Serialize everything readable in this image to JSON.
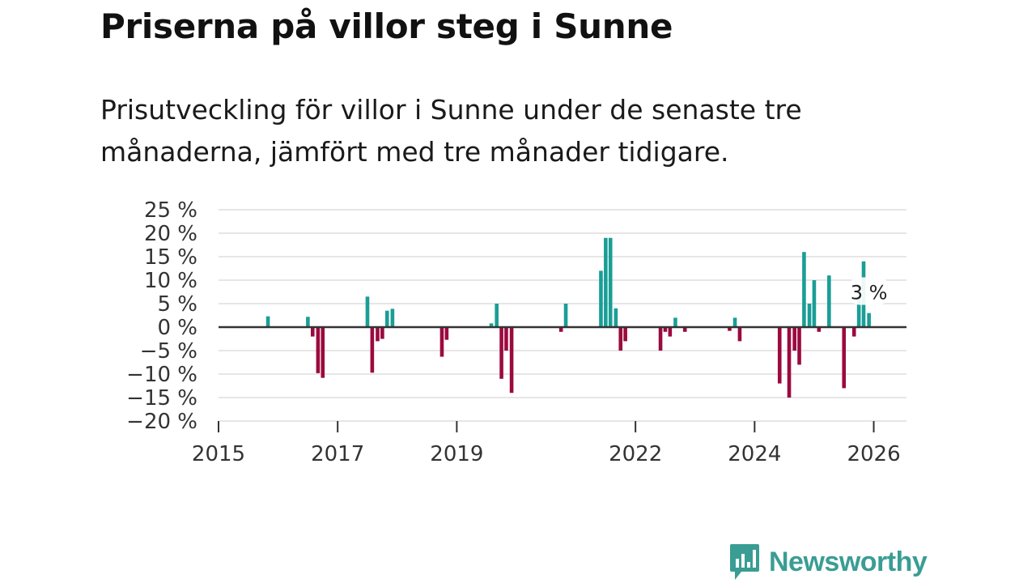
{
  "title": "Priserna på villor steg i Sunne",
  "subtitle": "Prisutveckling för villor i Sunne under de senaste tre månaderna, jämfört med tre månader tidigare.",
  "colors": {
    "positive": "#1a9e96",
    "negative": "#9b0a3e",
    "grid": "#dddddd",
    "zero": "#333333"
  },
  "logo": {
    "name": "Newsworthy",
    "icon": "bar-chart-speech-bubble-icon"
  },
  "chart_data": {
    "type": "bar",
    "title": "Priserna på villor steg i Sunne",
    "xlabel": "",
    "ylabel": "",
    "xlim": [
      2015.0,
      2026.55
    ],
    "ylim": [
      -20,
      25
    ],
    "y_ticks": [
      25,
      20,
      15,
      10,
      5,
      0,
      -5,
      -10,
      -15,
      -20
    ],
    "y_tick_labels": [
      "25 %",
      "20 %",
      "15 %",
      "10 %",
      "5 %",
      "0 %",
      "−5 %",
      "−10 %",
      "−15 %",
      "−20 %"
    ],
    "x_ticks": [
      2015,
      2017,
      2019,
      2022,
      2024,
      2026
    ],
    "x_tick_labels": [
      "2015",
      "2017",
      "2019",
      "2022",
      "2024",
      "2026"
    ],
    "annotation": {
      "x": 2025.92,
      "value": 3,
      "label": "3 %"
    },
    "points": [
      {
        "x": 2015.83,
        "v": 2.3
      },
      {
        "x": 2016.5,
        "v": 2.2
      },
      {
        "x": 2016.58,
        "v": -2.0
      },
      {
        "x": 2016.67,
        "v": -9.8
      },
      {
        "x": 2016.75,
        "v": -10.8
      },
      {
        "x": 2017.5,
        "v": 6.5
      },
      {
        "x": 2017.58,
        "v": -9.7
      },
      {
        "x": 2017.67,
        "v": -3.0
      },
      {
        "x": 2017.75,
        "v": -2.5
      },
      {
        "x": 2017.83,
        "v": 3.5
      },
      {
        "x": 2017.92,
        "v": 3.9
      },
      {
        "x": 2018.75,
        "v": -6.3
      },
      {
        "x": 2018.83,
        "v": -2.7
      },
      {
        "x": 2019.58,
        "v": 0.8
      },
      {
        "x": 2019.67,
        "v": 5.0
      },
      {
        "x": 2019.75,
        "v": -11.0
      },
      {
        "x": 2019.83,
        "v": -5.0
      },
      {
        "x": 2019.92,
        "v": -14.0
      },
      {
        "x": 2020.75,
        "v": -1.0
      },
      {
        "x": 2020.83,
        "v": 5.0
      },
      {
        "x": 2021.42,
        "v": 12.0
      },
      {
        "x": 2021.5,
        "v": 19.0
      },
      {
        "x": 2021.58,
        "v": 19.0
      },
      {
        "x": 2021.67,
        "v": 4.0
      },
      {
        "x": 2021.75,
        "v": -5.0
      },
      {
        "x": 2021.83,
        "v": -3.0
      },
      {
        "x": 2022.42,
        "v": -5.0
      },
      {
        "x": 2022.5,
        "v": -1.0
      },
      {
        "x": 2022.58,
        "v": -2.0
      },
      {
        "x": 2022.67,
        "v": 2.0
      },
      {
        "x": 2022.83,
        "v": -1.0
      },
      {
        "x": 2023.58,
        "v": -0.8
      },
      {
        "x": 2023.67,
        "v": 2.0
      },
      {
        "x": 2023.75,
        "v": -3.0
      },
      {
        "x": 2024.42,
        "v": -12.0
      },
      {
        "x": 2024.58,
        "v": -15.0
      },
      {
        "x": 2024.67,
        "v": -5.0
      },
      {
        "x": 2024.75,
        "v": -8.0
      },
      {
        "x": 2024.83,
        "v": 16.0
      },
      {
        "x": 2024.92,
        "v": 5.0
      },
      {
        "x": 2025.0,
        "v": 10.0
      },
      {
        "x": 2025.08,
        "v": -1.0
      },
      {
        "x": 2025.25,
        "v": 11.0
      },
      {
        "x": 2025.5,
        "v": -13.0
      },
      {
        "x": 2025.67,
        "v": -2.0
      },
      {
        "x": 2025.75,
        "v": 6.0
      },
      {
        "x": 2025.83,
        "v": 14.0
      },
      {
        "x": 2025.92,
        "v": 3.0
      }
    ]
  }
}
